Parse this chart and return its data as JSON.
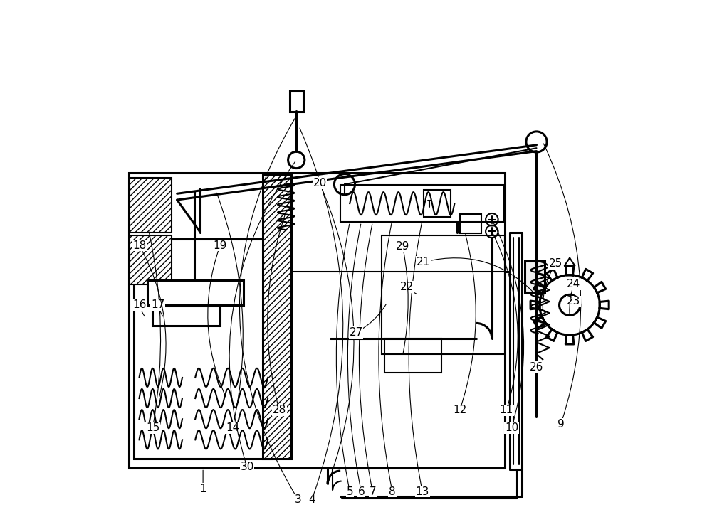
{
  "bg_color": "#ffffff",
  "line_color": "#000000",
  "fig_width": 10.0,
  "fig_height": 7.34,
  "label_fs": 11
}
